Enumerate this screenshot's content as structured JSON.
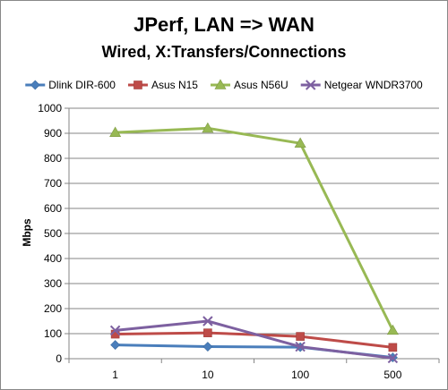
{
  "chart_data": {
    "type": "line",
    "title": "JPerf, LAN => WAN",
    "subtitle": "Wired, X:Transfers/Connections",
    "xlabel": "",
    "ylabel": "Mbps",
    "categories": [
      "1",
      "10",
      "100",
      "500"
    ],
    "ylim": [
      0,
      1000
    ],
    "yticks": [
      0,
      100,
      200,
      300,
      400,
      500,
      600,
      700,
      800,
      900,
      1000
    ],
    "grid": true,
    "legend_position": "top",
    "series": [
      {
        "name": "Dlink DIR-600",
        "color": "#4a7ebb",
        "marker": "diamond",
        "values": [
          55,
          48,
          46,
          5
        ]
      },
      {
        "name": "Asus N15",
        "color": "#be4b48",
        "marker": "square",
        "values": [
          98,
          103,
          89,
          45
        ]
      },
      {
        "name": "Asus N56U",
        "color": "#98b954",
        "marker": "triangle",
        "values": [
          903,
          920,
          860,
          113
        ]
      },
      {
        "name": "Netgear WNDR3700",
        "color": "#7d60a0",
        "marker": "x",
        "values": [
          113,
          150,
          48,
          2
        ]
      }
    ]
  }
}
